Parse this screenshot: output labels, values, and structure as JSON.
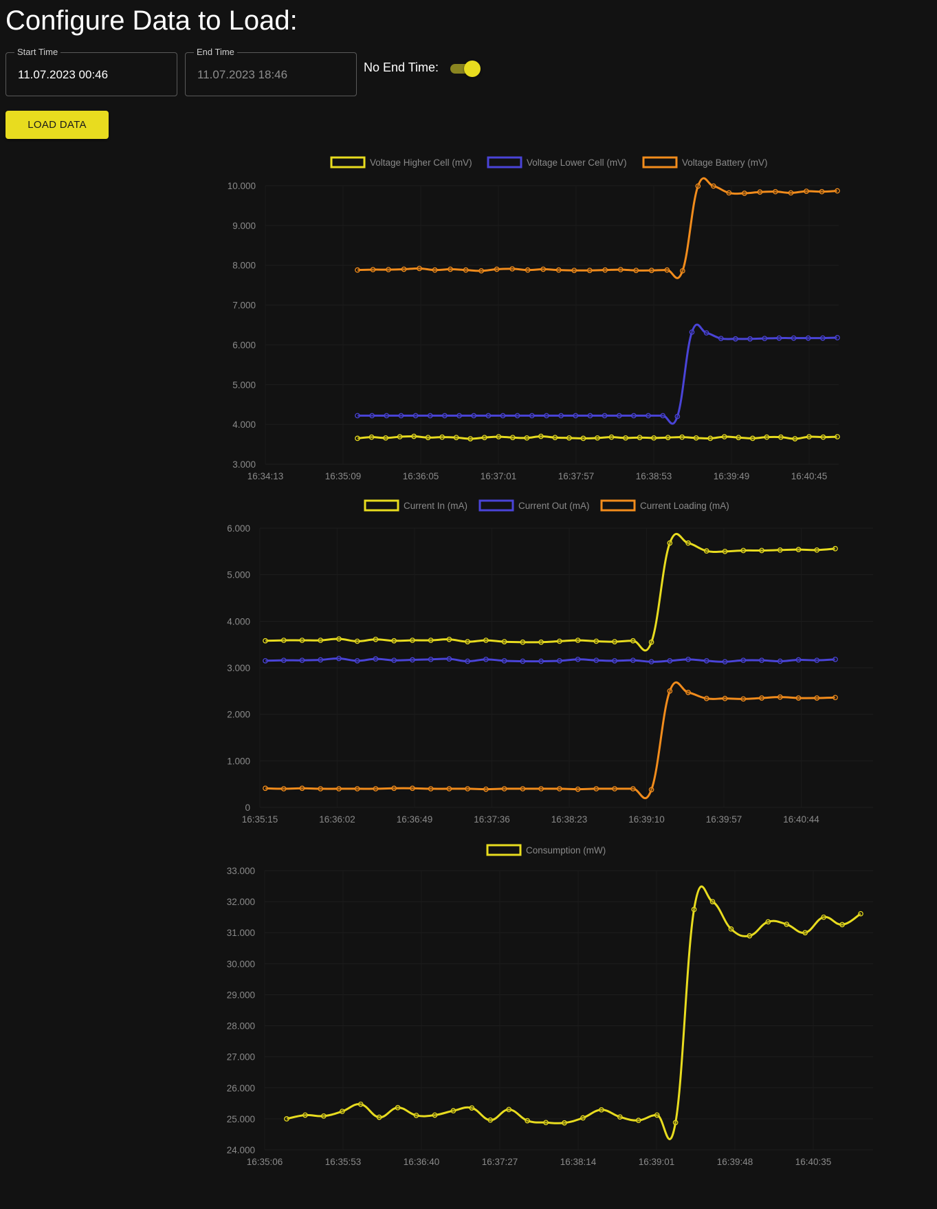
{
  "header": {
    "title": "Configure Data to Load:"
  },
  "form": {
    "start_label": "Start Time",
    "start_value": "11.07.2023 00:46",
    "end_label": "End Time",
    "end_value": "11.07.2023 18:46",
    "no_end_label": "No End Time:",
    "no_end_enabled": true,
    "load_button": "LOAD DATA"
  },
  "colors": {
    "accent": "#e8dc1f",
    "yellow": "#e8dc1f",
    "blue": "#4a44d8",
    "orange": "#f28c1c",
    "background": "#121212"
  },
  "chart_data": [
    {
      "type": "line",
      "x_tick_labels": [
        "16:34:13",
        "16:35:09",
        "16:36:05",
        "16:37:01",
        "16:37:57",
        "16:38:53",
        "16:39:49",
        "16:40:45"
      ],
      "y_tick_labels": [
        "3.000",
        "4.000",
        "5.000",
        "6.000",
        "7.000",
        "8.000",
        "9.000",
        "10.000"
      ],
      "ylim": [
        3000,
        10000
      ],
      "legend_position": "top",
      "series": [
        {
          "name": "Voltage Higher Cell (mV)",
          "color": "#e8dc1f",
          "values": [
            3650,
            3680,
            3660,
            3690,
            3700,
            3670,
            3680,
            3670,
            3640,
            3670,
            3690,
            3670,
            3660,
            3700,
            3670,
            3660,
            3650,
            3660,
            3680,
            3660,
            3670,
            3660,
            3670,
            3680,
            3660,
            3650,
            3690,
            3670,
            3650,
            3680,
            3680,
            3640,
            3690,
            3680,
            3690
          ]
        },
        {
          "name": "Voltage Lower Cell (mV)",
          "color": "#4a44d8",
          "values": [
            4220,
            4220,
            4220,
            4220,
            4220,
            4220,
            4220,
            4220,
            4220,
            4220,
            4220,
            4220,
            4220,
            4220,
            4220,
            4220,
            4220,
            4220,
            4220,
            4220,
            4220,
            4220,
            4200,
            6320,
            6300,
            6160,
            6150,
            6150,
            6160,
            6170,
            6170,
            6170,
            6170,
            6180
          ]
        },
        {
          "name": "Voltage Battery (mV)",
          "color": "#f28c1c",
          "values": [
            7880,
            7890,
            7890,
            7900,
            7920,
            7880,
            7900,
            7880,
            7860,
            7900,
            7910,
            7880,
            7900,
            7880,
            7870,
            7870,
            7880,
            7890,
            7870,
            7870,
            7880,
            7860,
            9990,
            9990,
            9820,
            9810,
            9840,
            9850,
            9820,
            9860,
            9850,
            9870
          ]
        }
      ]
    },
    {
      "type": "line",
      "x_tick_labels": [
        "16:35:15",
        "16:36:02",
        "16:36:49",
        "16:37:36",
        "16:38:23",
        "16:39:10",
        "16:39:57",
        "16:40:44"
      ],
      "y_tick_labels": [
        "0",
        "1.000",
        "2.000",
        "3.000",
        "4.000",
        "5.000",
        "6.000"
      ],
      "ylim": [
        0,
        6000
      ],
      "legend_position": "top",
      "series": [
        {
          "name": "Current In (mA)",
          "color": "#e8dc1f",
          "values": [
            3580,
            3590,
            3590,
            3590,
            3620,
            3570,
            3610,
            3580,
            3590,
            3590,
            3610,
            3560,
            3590,
            3560,
            3550,
            3550,
            3570,
            3590,
            3570,
            3560,
            3580,
            3550,
            5680,
            5680,
            5510,
            5500,
            5520,
            5520,
            5530,
            5540,
            5530,
            5560
          ]
        },
        {
          "name": "Current Out (mA)",
          "color": "#4a44d8",
          "values": [
            3150,
            3160,
            3160,
            3170,
            3200,
            3150,
            3190,
            3160,
            3170,
            3180,
            3190,
            3140,
            3180,
            3150,
            3140,
            3140,
            3150,
            3180,
            3160,
            3150,
            3160,
            3130,
            3150,
            3180,
            3150,
            3130,
            3160,
            3160,
            3140,
            3170,
            3160,
            3180
          ]
        },
        {
          "name": "Current Loading (mA)",
          "color": "#f28c1c",
          "values": [
            410,
            400,
            410,
            400,
            400,
            400,
            400,
            410,
            410,
            400,
            400,
            400,
            390,
            400,
            400,
            400,
            400,
            390,
            400,
            400,
            400,
            380,
            2500,
            2470,
            2340,
            2340,
            2330,
            2350,
            2370,
            2350,
            2350,
            2360
          ]
        }
      ]
    },
    {
      "type": "line",
      "x_tick_labels": [
        "16:35:06",
        "16:35:53",
        "16:36:40",
        "16:37:27",
        "16:38:14",
        "16:39:01",
        "16:39:48",
        "16:40:35"
      ],
      "y_tick_labels": [
        "24.000",
        "25.000",
        "26.000",
        "27.000",
        "28.000",
        "29.000",
        "30.000",
        "31.000",
        "32.000",
        "33.000"
      ],
      "ylim": [
        24000,
        33000
      ],
      "legend_position": "top",
      "series": [
        {
          "name": "Consumption (mW)",
          "color": "#e8dc1f",
          "values": [
            25000,
            25120,
            25090,
            25240,
            25470,
            25050,
            25360,
            25110,
            25120,
            25260,
            25350,
            24960,
            25300,
            24940,
            24880,
            24870,
            25030,
            25290,
            25060,
            24950,
            25120,
            24880,
            31750,
            32000,
            31120,
            30900,
            31350,
            31270,
            31000,
            31500,
            31260,
            31610
          ]
        }
      ]
    }
  ]
}
